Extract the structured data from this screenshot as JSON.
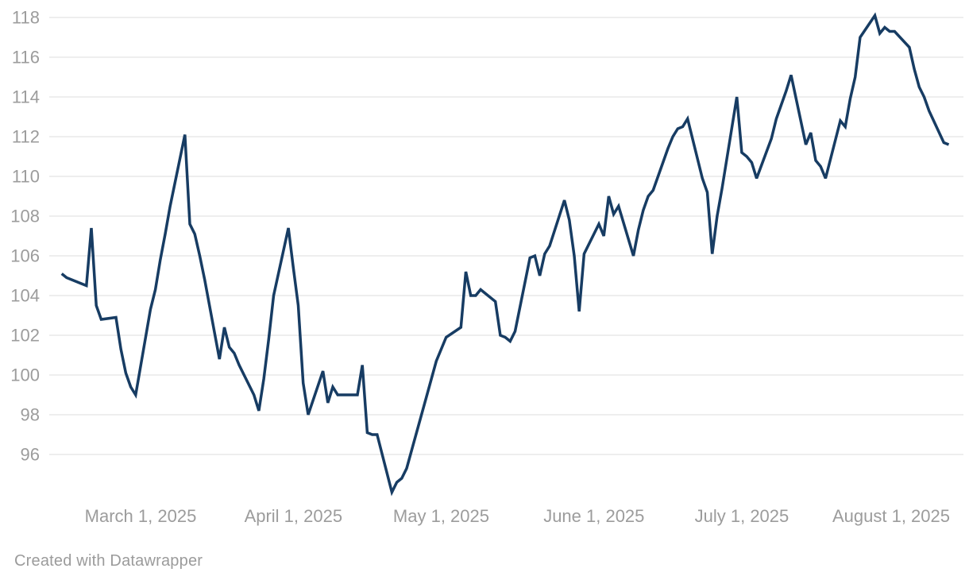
{
  "footer": {
    "credit_label": "Created with Datawrapper"
  },
  "chart_data": {
    "type": "line",
    "title": "",
    "legend": "none",
    "grid": true,
    "y_axis": {
      "ticks": [
        96,
        98,
        100,
        102,
        104,
        106,
        108,
        110,
        112,
        114,
        116,
        118
      ],
      "range": [
        93.4,
        118.5
      ]
    },
    "x_axis": {
      "ticks": [
        {
          "date": "2025-03-01",
          "label": "March 1, 2025"
        },
        {
          "date": "2025-04-01",
          "label": "April 1, 2025"
        },
        {
          "date": "2025-05-01",
          "label": "May 1, 2025"
        },
        {
          "date": "2025-06-01",
          "label": "June 1, 2025"
        },
        {
          "date": "2025-07-01",
          "label": "July 1, 2025"
        },
        {
          "date": "2025-08-01",
          "label": "August 1, 2025"
        }
      ],
      "range": [
        "2025-02-13",
        "2025-08-13"
      ]
    },
    "styles": {
      "line_color": "#173C63",
      "line_width": 3.5,
      "grid_color": "#E4E4E4",
      "axis_label_color": "#9C9C9C",
      "axis_font_size": 22
    },
    "series": [
      {
        "name": "value",
        "points": [
          [
            "2025-02-13",
            105.1
          ],
          [
            "2025-02-14",
            104.9
          ],
          [
            "2025-02-17",
            104.6
          ],
          [
            "2025-02-18",
            104.5
          ],
          [
            "2025-02-19",
            107.4
          ],
          [
            "2025-02-20",
            103.5
          ],
          [
            "2025-02-21",
            102.8
          ],
          [
            "2025-02-24",
            102.9
          ],
          [
            "2025-02-25",
            101.3
          ],
          [
            "2025-02-26",
            100.1
          ],
          [
            "2025-02-27",
            99.4
          ],
          [
            "2025-02-28",
            99.0
          ],
          [
            "2025-03-03",
            103.3
          ],
          [
            "2025-03-04",
            104.3
          ],
          [
            "2025-03-05",
            105.8
          ],
          [
            "2025-03-06",
            107.1
          ],
          [
            "2025-03-07",
            108.5
          ],
          [
            "2025-03-10",
            112.1
          ],
          [
            "2025-03-11",
            107.6
          ],
          [
            "2025-03-12",
            107.1
          ],
          [
            "2025-03-13",
            106.0
          ],
          [
            "2025-03-14",
            104.8
          ],
          [
            "2025-03-17",
            100.8
          ],
          [
            "2025-03-18",
            102.4
          ],
          [
            "2025-03-19",
            101.4
          ],
          [
            "2025-03-20",
            101.1
          ],
          [
            "2025-03-21",
            100.5
          ],
          [
            "2025-03-24",
            99.0
          ],
          [
            "2025-03-25",
            98.2
          ],
          [
            "2025-03-26",
            99.8
          ],
          [
            "2025-03-27",
            101.8
          ],
          [
            "2025-03-28",
            104.0
          ],
          [
            "2025-03-31",
            107.4
          ],
          [
            "2025-04-01",
            105.4
          ],
          [
            "2025-04-02",
            103.5
          ],
          [
            "2025-04-03",
            99.6
          ],
          [
            "2025-04-04",
            98.0
          ],
          [
            "2025-04-07",
            100.2
          ],
          [
            "2025-04-08",
            98.6
          ],
          [
            "2025-04-09",
            99.4
          ],
          [
            "2025-04-10",
            99.0
          ],
          [
            "2025-04-11",
            99.0
          ],
          [
            "2025-04-14",
            99.0
          ],
          [
            "2025-04-15",
            100.5
          ],
          [
            "2025-04-16",
            97.1
          ],
          [
            "2025-04-17",
            97.0
          ],
          [
            "2025-04-18",
            97.0
          ],
          [
            "2025-04-21",
            94.1
          ],
          [
            "2025-04-22",
            94.6
          ],
          [
            "2025-04-23",
            94.8
          ],
          [
            "2025-04-24",
            95.3
          ],
          [
            "2025-04-25",
            96.2
          ],
          [
            "2025-04-28",
            98.9
          ],
          [
            "2025-04-29",
            99.8
          ],
          [
            "2025-04-30",
            100.7
          ],
          [
            "2025-05-01",
            101.3
          ],
          [
            "2025-05-02",
            101.9
          ],
          [
            "2025-05-05",
            102.4
          ],
          [
            "2025-05-06",
            105.2
          ],
          [
            "2025-05-07",
            104.0
          ],
          [
            "2025-05-08",
            104.0
          ],
          [
            "2025-05-09",
            104.3
          ],
          [
            "2025-05-12",
            103.7
          ],
          [
            "2025-05-13",
            102.0
          ],
          [
            "2025-05-14",
            101.9
          ],
          [
            "2025-05-15",
            101.7
          ],
          [
            "2025-05-16",
            102.2
          ],
          [
            "2025-05-19",
            105.9
          ],
          [
            "2025-05-20",
            106.0
          ],
          [
            "2025-05-21",
            105.0
          ],
          [
            "2025-05-22",
            106.1
          ],
          [
            "2025-05-23",
            106.5
          ],
          [
            "2025-05-26",
            108.8
          ],
          [
            "2025-05-27",
            107.8
          ],
          [
            "2025-05-28",
            106.0
          ],
          [
            "2025-05-29",
            103.2
          ],
          [
            "2025-05-30",
            106.1
          ],
          [
            "2025-06-02",
            107.6
          ],
          [
            "2025-06-03",
            107.0
          ],
          [
            "2025-06-04",
            109.0
          ],
          [
            "2025-06-05",
            108.1
          ],
          [
            "2025-06-06",
            108.5
          ],
          [
            "2025-06-09",
            106.0
          ],
          [
            "2025-06-10",
            107.3
          ],
          [
            "2025-06-11",
            108.3
          ],
          [
            "2025-06-12",
            109.0
          ],
          [
            "2025-06-13",
            109.3
          ],
          [
            "2025-06-16",
            111.4
          ],
          [
            "2025-06-17",
            112.0
          ],
          [
            "2025-06-18",
            112.4
          ],
          [
            "2025-06-19",
            112.5
          ],
          [
            "2025-06-20",
            112.9
          ],
          [
            "2025-06-23",
            109.9
          ],
          [
            "2025-06-24",
            109.2
          ],
          [
            "2025-06-25",
            106.1
          ],
          [
            "2025-06-26",
            108.0
          ],
          [
            "2025-06-27",
            109.4
          ],
          [
            "2025-06-30",
            114.0
          ],
          [
            "2025-07-01",
            111.2
          ],
          [
            "2025-07-02",
            111.0
          ],
          [
            "2025-07-03",
            110.7
          ],
          [
            "2025-07-04",
            109.9
          ],
          [
            "2025-07-07",
            111.9
          ],
          [
            "2025-07-08",
            112.9
          ],
          [
            "2025-07-09",
            113.6
          ],
          [
            "2025-07-10",
            114.3
          ],
          [
            "2025-07-11",
            115.1
          ],
          [
            "2025-07-14",
            111.6
          ],
          [
            "2025-07-15",
            112.2
          ],
          [
            "2025-07-16",
            110.8
          ],
          [
            "2025-07-17",
            110.5
          ],
          [
            "2025-07-18",
            109.9
          ],
          [
            "2025-07-21",
            112.8
          ],
          [
            "2025-07-22",
            112.5
          ],
          [
            "2025-07-23",
            113.9
          ],
          [
            "2025-07-24",
            115.0
          ],
          [
            "2025-07-25",
            117.0
          ],
          [
            "2025-07-28",
            118.1
          ],
          [
            "2025-07-29",
            117.2
          ],
          [
            "2025-07-30",
            117.5
          ],
          [
            "2025-07-31",
            117.3
          ],
          [
            "2025-08-01",
            117.3
          ],
          [
            "2025-08-04",
            116.5
          ],
          [
            "2025-08-05",
            115.4
          ],
          [
            "2025-08-06",
            114.5
          ],
          [
            "2025-08-07",
            114.0
          ],
          [
            "2025-08-08",
            113.3
          ],
          [
            "2025-08-11",
            111.7
          ],
          [
            "2025-08-12",
            111.6
          ]
        ]
      }
    ]
  }
}
